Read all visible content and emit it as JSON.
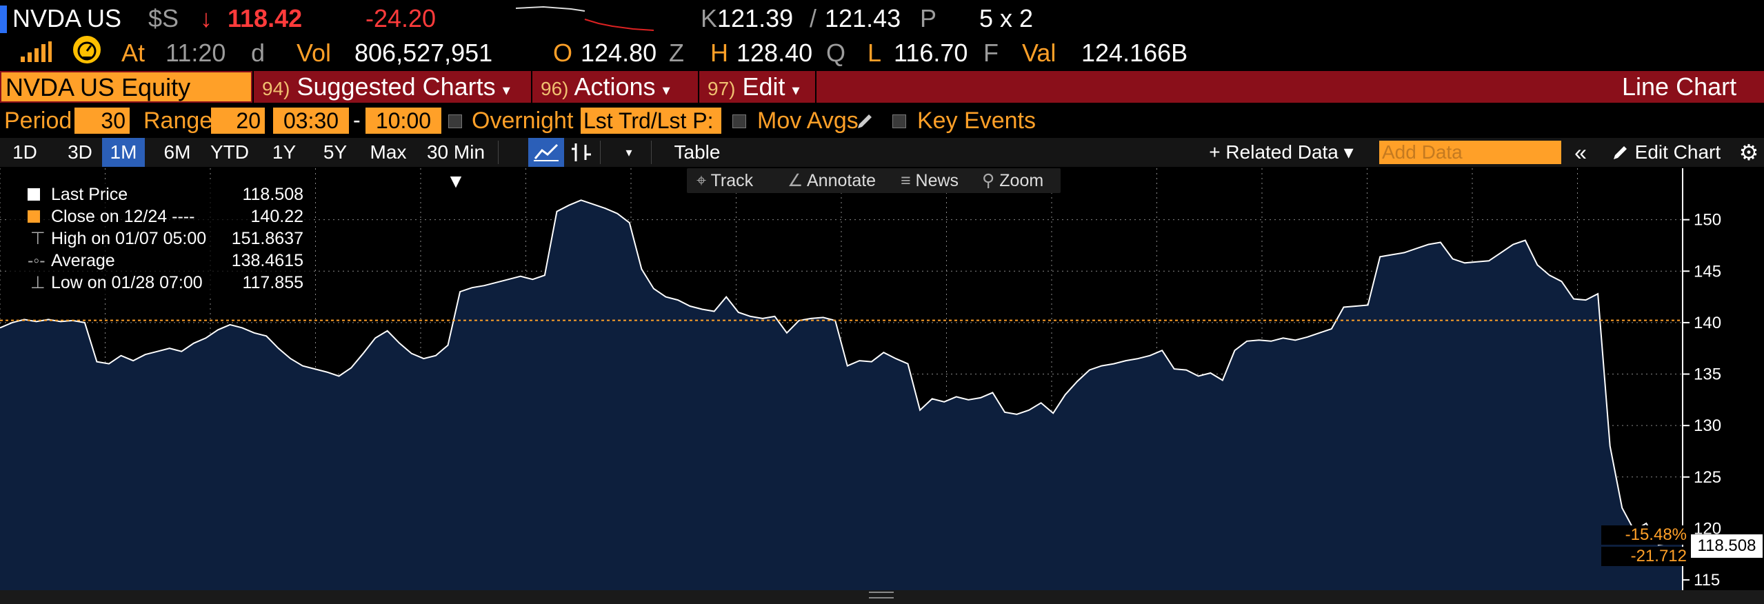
{
  "ticker_header": {
    "ticker": "NVDA US",
    "currency": "$S",
    "arrow": "↓",
    "last": "118.42",
    "change": "-24.20",
    "bid_prefix": "K",
    "bid": "121.39",
    "slash": "/",
    "ask": "121.43",
    "ask_suffix": "P",
    "size": "5 x 2"
  },
  "stats_row": {
    "at_label": "At",
    "time": "11:20",
    "time_suffix": "d",
    "vol_label": "Vol",
    "volume": "806,527,951",
    "open_label": "O",
    "open": "124.80",
    "open_suffix": "Z",
    "high_label": "H",
    "high": "128.40",
    "high_suffix": "Q",
    "low_label": "L",
    "low": "116.70",
    "low_suffix": "F",
    "val_label": "Val",
    "value": "124.166B"
  },
  "menu": {
    "security": "NVDA US Equity",
    "suggested_num": "94)",
    "suggested": "Suggested Charts",
    "actions_num": "96)",
    "actions": "Actions",
    "edit_num": "97)",
    "edit": "Edit",
    "caret": "▾",
    "chart_type": "Line Chart"
  },
  "period_row": {
    "period_label": "Period",
    "period_value": "30",
    "range_label": "Range",
    "range_value": "20",
    "start_time": "03:30",
    "dash": "-",
    "end_time": "10:00",
    "overnight_label": "Overnight",
    "lst_label": "Lst Trd/Lst P:",
    "mov_avgs_label": "Mov Avgs",
    "key_events_label": "Key Events"
  },
  "toolbar": {
    "ranges": [
      "1D",
      "3D",
      "1M",
      "6M",
      "YTD",
      "1Y",
      "5Y",
      "Max"
    ],
    "selected_range": "1M",
    "interval": "30 Min ▼",
    "table": "Table",
    "related_data": "+ Related Data ▾",
    "add_data_placeholder": "Add Data",
    "collapse": "«",
    "edit_chart": "Edit Chart",
    "icons": [
      "line-chart-icon",
      "bar-chart-icon",
      "dropdown-icon",
      "pencil-icon",
      "gear-icon"
    ]
  },
  "chart_tools": {
    "track": "Track",
    "annotate": "Annotate",
    "news": "News",
    "zoom": "Zoom"
  },
  "legend": {
    "last_price_label": "Last Price",
    "last_price_value": "118.508",
    "close_label": "Close on 12/24 ----",
    "close_value": "140.22",
    "high_label": "High on 01/07 05:00",
    "high_value": "151.8637",
    "average_label": "Average",
    "average_value": "138.4615",
    "low_label": "Low on 01/28 07:00",
    "low_value": "117.855"
  },
  "right_tags": {
    "last_price": "118.508",
    "pct_change": "-15.48%",
    "abs_change": "-21.712"
  },
  "colors": {
    "background": "#000000",
    "amber": "#ffa028",
    "menu_red": "#8a0f1a",
    "area_fill": "#0d1f3d",
    "line": "#ffffff",
    "ref_line": "#ffa028",
    "negative": "#ff3b3b",
    "selected": "#2b5fb8"
  },
  "chart_data": {
    "type": "area",
    "title": "",
    "xlabel": "",
    "ylabel": "",
    "ylim": [
      114,
      155
    ],
    "yticks": [
      115,
      120,
      125,
      130,
      135,
      140,
      145,
      150
    ],
    "reference_line": 140.22,
    "grid": true,
    "legend_position": "top-left",
    "series": [
      {
        "name": "Last Price",
        "values": [
          139.5,
          140.0,
          140.3,
          140.1,
          140.3,
          140.1,
          140.2,
          140.0,
          136.2,
          136.0,
          136.8,
          136.3,
          136.9,
          137.2,
          137.5,
          137.2,
          138.0,
          138.5,
          139.3,
          139.8,
          139.5,
          139.0,
          138.7,
          137.5,
          136.5,
          135.8,
          135.5,
          135.2,
          134.8,
          135.6,
          137.0,
          138.5,
          139.2,
          138.0,
          137.0,
          136.5,
          136.8,
          137.8,
          143.0,
          143.4,
          143.6,
          143.9,
          144.2,
          144.5,
          144.2,
          144.6,
          150.8,
          151.4,
          151.9,
          151.5,
          151.1,
          150.6,
          149.7,
          145.2,
          143.3,
          142.5,
          142.2,
          141.6,
          141.3,
          141.1,
          142.5,
          141.0,
          140.6,
          140.4,
          140.6,
          139.0,
          140.2,
          140.4,
          140.5,
          140.2,
          135.8,
          136.3,
          136.2,
          137.1,
          136.5,
          136.0,
          131.5,
          132.6,
          132.3,
          132.8,
          132.5,
          132.7,
          133.2,
          131.3,
          131.1,
          131.5,
          132.2,
          131.2,
          133.0,
          134.3,
          135.4,
          135.8,
          136.0,
          136.3,
          136.5,
          136.8,
          137.3,
          135.5,
          135.4,
          134.8,
          135.1,
          134.4,
          137.3,
          138.2,
          138.3,
          138.2,
          138.5,
          138.3,
          138.6,
          139.0,
          139.4,
          141.5,
          141.6,
          141.7,
          146.4,
          146.6,
          146.8,
          147.2,
          147.6,
          147.8,
          146.2,
          145.8,
          145.9,
          146.0,
          146.8,
          147.6,
          148.0,
          145.6,
          144.6,
          144.0,
          142.3,
          142.2,
          142.8,
          128.0,
          122.0,
          119.8,
          120.5,
          118.4,
          118.6,
          118.5
        ]
      }
    ]
  }
}
